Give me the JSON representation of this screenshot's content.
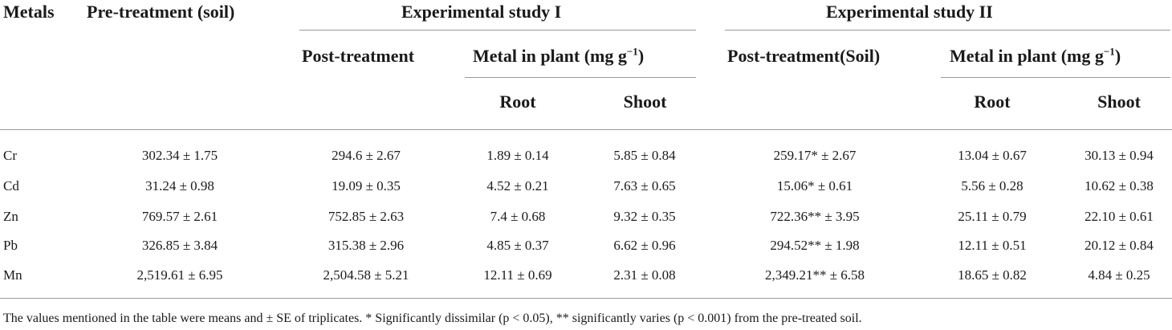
{
  "headers": {
    "metals": "Metals",
    "pre_treatment": "Pre-treatment (soil)",
    "study1": "Experimental study I",
    "study2": "Experimental study II",
    "post_treatment_1": "Post-treatment",
    "metal_in_plant_1": "Metal in plant (mg g",
    "post_treatment_2": "Post-treatment(Soil)",
    "metal_in_plant_2": "Metal in plant (mg g",
    "unit_exp": "−1",
    "unit_close": ")",
    "root_1": "Root",
    "shoot_1": "Shoot",
    "root_2": "Root",
    "shoot_2": "Shoot"
  },
  "rows": [
    {
      "metal": "Cr",
      "pre": "302.34 ± 1.75",
      "post1": "294.6 ± 2.67",
      "root1": "1.89 ± 0.14",
      "shoot1": "5.85 ± 0.84",
      "post2": "259.17* ± 2.67",
      "root2": "13.04 ± 0.67",
      "shoot2": "30.13 ± 0.94"
    },
    {
      "metal": "Cd",
      "pre": "31.24 ± 0.98",
      "post1": "19.09 ± 0.35",
      "root1": "4.52 ± 0.21",
      "shoot1": "7.63 ± 0.65",
      "post2": "15.06* ± 0.61",
      "root2": "5.56 ± 0.28",
      "shoot2": "10.62 ± 0.38"
    },
    {
      "metal": "Zn",
      "pre": "769.57 ± 2.61",
      "post1": "752.85 ± 2.63",
      "root1": "7.4 ± 0.68",
      "shoot1": "9.32 ± 0.35",
      "post2": "722.36** ± 3.95",
      "root2": "25.11 ± 0.79",
      "shoot2": "22.10 ± 0.61"
    },
    {
      "metal": "Pb",
      "pre": "326.85 ± 3.84",
      "post1": "315.38 ± 2.96",
      "root1": "4.85 ± 0.37",
      "shoot1": "6.62 ± 0.96",
      "post2": "294.52** ± 1.98",
      "root2": "12.11 ± 0.51",
      "shoot2": "20.12 ± 0.84"
    },
    {
      "metal": "Mn",
      "pre": "2,519.61 ± 6.95",
      "post1": "2,504.58 ± 5.21",
      "root1": "12.11 ± 0.69",
      "shoot1": "2.31 ± 0.08",
      "post2": "2,349.21** ± 6.58",
      "root2": "18.65 ± 0.82",
      "shoot2": "4.84 ± 0.25"
    }
  ],
  "footnote": "The values mentioned in the table were means and ± SE of triplicates. * Significantly dissimilar (p < 0.05), ** significantly varies (p < 0.001) from the pre-treated soil."
}
